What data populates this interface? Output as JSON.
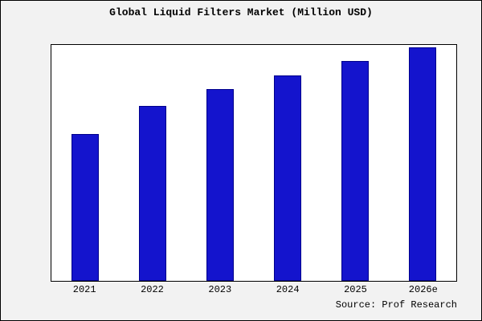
{
  "source": "Source: Prof Research",
  "chart_data": {
    "type": "bar",
    "title": "Global Liquid Filters Market (Million USD)",
    "categories": [
      "2021",
      "2022",
      "2023",
      "2024",
      "2025",
      "2026e"
    ],
    "values": [
      63,
      75,
      82,
      88,
      94,
      100
    ],
    "xlabel": "",
    "ylabel": "",
    "ylim": [
      0,
      101
    ],
    "grid": false,
    "legend": false,
    "bar_color": "#1414cd",
    "bar_edge_color": "#00008b",
    "plot_background": "#ffffff",
    "figure_background": "#f2f2f2"
  }
}
